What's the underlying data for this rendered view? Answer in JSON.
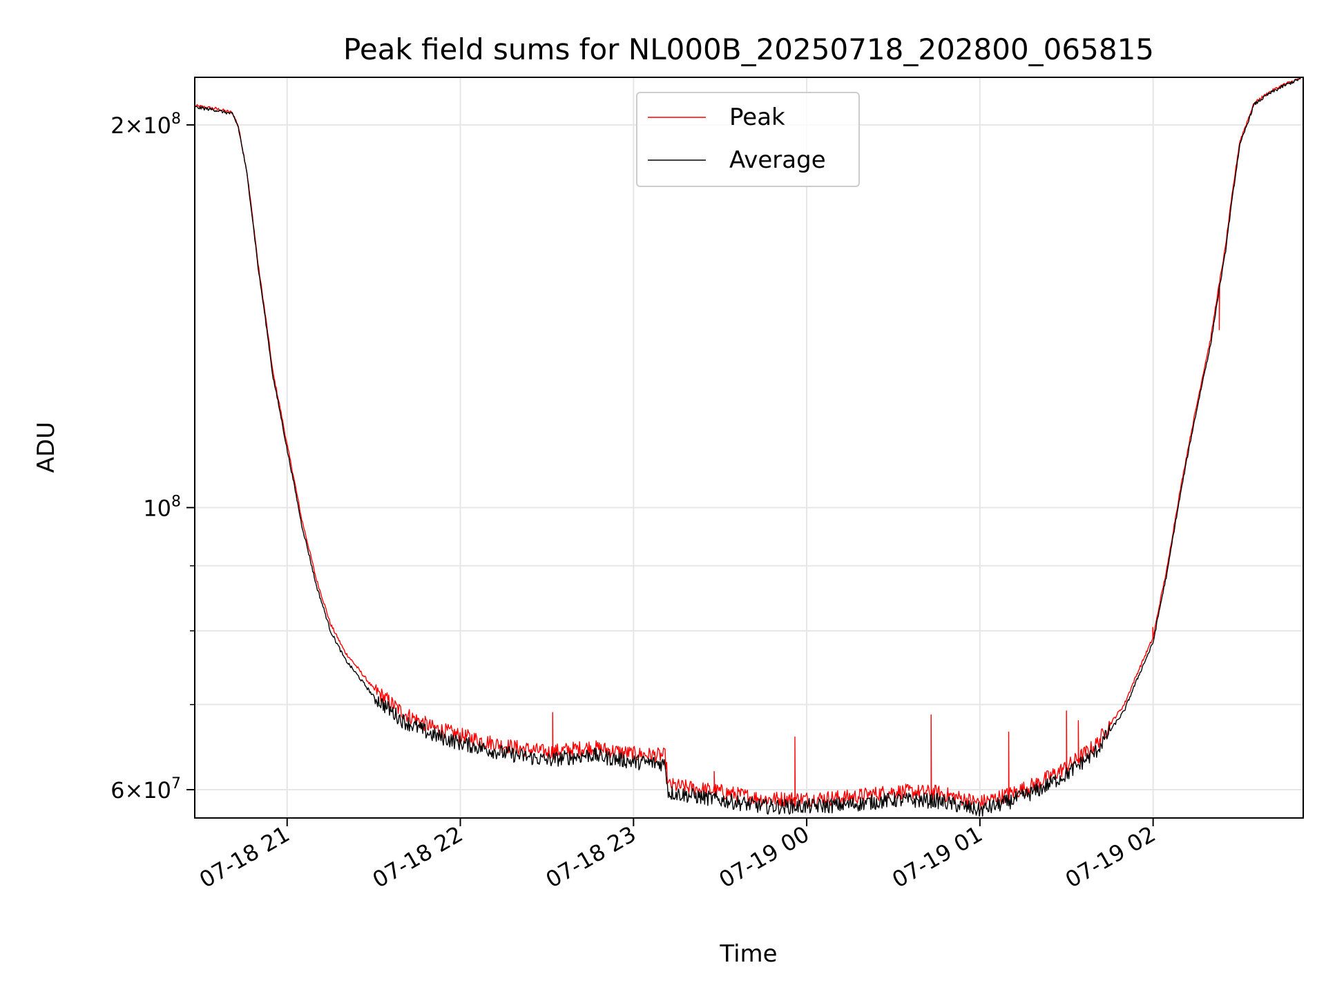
{
  "chart_data": {
    "type": "line",
    "title": "Peak field sums for NL000B_20250718_202800_065815",
    "xlabel": "Time",
    "ylabel": "ADU",
    "yscale": "log",
    "xlim": [
      "2025-07-18 20:28",
      "2025-07-19 02:52"
    ],
    "ylim": [
      57000000,
      218000000
    ],
    "grid": true,
    "legend_position": "top-center",
    "x_ticks": [
      {
        "time": "2025-07-18 21:00",
        "label": "07-18 21"
      },
      {
        "time": "2025-07-18 22:00",
        "label": "07-18 22"
      },
      {
        "time": "2025-07-18 23:00",
        "label": "07-18 23"
      },
      {
        "time": "2025-07-19 00:00",
        "label": "07-19 00"
      },
      {
        "time": "2025-07-19 01:00",
        "label": "07-19 01"
      },
      {
        "time": "2025-07-19 02:00",
        "label": "07-19 02"
      }
    ],
    "y_ticks_major": [
      {
        "value": 60000000,
        "mant": "6",
        "exp": "7"
      },
      {
        "value": 100000000,
        "mant": "",
        "exp": "8"
      },
      {
        "value": 200000000,
        "mant": "2",
        "exp": "8"
      }
    ],
    "y_ticks_minor": [
      70000000,
      80000000,
      90000000
    ],
    "series": [
      {
        "name": "Peak",
        "color": "#ff0000",
        "points": [
          [
            "2025-07-18 20:28",
            207000000
          ],
          [
            "2025-07-18 20:35",
            206000000
          ],
          [
            "2025-07-18 20:41",
            204500000
          ],
          [
            "2025-07-18 20:43",
            200000000
          ],
          [
            "2025-07-18 20:46",
            184000000
          ],
          [
            "2025-07-18 20:50",
            155000000
          ],
          [
            "2025-07-18 20:55",
            128000000
          ],
          [
            "2025-07-18 21:00",
            112000000
          ],
          [
            "2025-07-18 21:05",
            98000000
          ],
          [
            "2025-07-18 21:10",
            88000000
          ],
          [
            "2025-07-18 21:15",
            81000000
          ],
          [
            "2025-07-18 21:20",
            77000000
          ],
          [
            "2025-07-18 21:30",
            72000000
          ],
          [
            "2025-07-18 21:40",
            69000000
          ],
          [
            "2025-07-18 21:50",
            67200000
          ],
          [
            "2025-07-18 22:00",
            66200000
          ],
          [
            "2025-07-18 22:15",
            65000000
          ],
          [
            "2025-07-18 22:30",
            64200000
          ],
          [
            "2025-07-18 22:45",
            64800000
          ],
          [
            "2025-07-18 23:00",
            64000000
          ],
          [
            "2025-07-18 23:11",
            63800000
          ],
          [
            "2025-07-18 23:12",
            60500000
          ],
          [
            "2025-07-18 23:30",
            59800000
          ],
          [
            "2025-07-18 23:45",
            59000000
          ],
          [
            "2025-07-19 00:00",
            59000000
          ],
          [
            "2025-07-19 00:15",
            59200000
          ],
          [
            "2025-07-19 00:30",
            59800000
          ],
          [
            "2025-07-19 00:45",
            59700000
          ],
          [
            "2025-07-19 01:00",
            58600000
          ],
          [
            "2025-07-19 01:10",
            59500000
          ],
          [
            "2025-07-19 01:20",
            60700000
          ],
          [
            "2025-07-19 01:30",
            62500000
          ],
          [
            "2025-07-19 01:40",
            65000000
          ],
          [
            "2025-07-19 01:50",
            70000000
          ],
          [
            "2025-07-19 02:00",
            79000000
          ],
          [
            "2025-07-19 02:05",
            90000000
          ],
          [
            "2025-07-19 02:10",
            105000000
          ],
          [
            "2025-07-19 02:15",
            120000000
          ],
          [
            "2025-07-19 02:20",
            136000000
          ],
          [
            "2025-07-19 02:25",
            160000000
          ],
          [
            "2025-07-19 02:30",
            194000000
          ],
          [
            "2025-07-19 02:35",
            208000000
          ],
          [
            "2025-07-19 02:40",
            212000000
          ],
          [
            "2025-07-19 02:45",
            215000000
          ],
          [
            "2025-07-19 02:52",
            218000000
          ]
        ],
        "spikes": [
          [
            "2025-07-18 22:32",
            69000000
          ],
          [
            "2025-07-18 23:28",
            62000000
          ],
          [
            "2025-07-18 23:56",
            66000000
          ],
          [
            "2025-07-19 00:43",
            68700000
          ],
          [
            "2025-07-19 01:10",
            66600000
          ],
          [
            "2025-07-19 01:30",
            69200000
          ],
          [
            "2025-07-19 01:34",
            68000000
          ],
          [
            "2025-07-19 02:00",
            80500000
          ],
          [
            "2025-07-19 02:23",
            138000000
          ]
        ]
      },
      {
        "name": "Average",
        "color": "#000000",
        "points": [
          [
            "2025-07-18 20:28",
            206500000
          ],
          [
            "2025-07-18 20:35",
            205500000
          ],
          [
            "2025-07-18 20:41",
            204000000
          ],
          [
            "2025-07-18 20:43",
            199500000
          ],
          [
            "2025-07-18 20:46",
            183500000
          ],
          [
            "2025-07-18 20:50",
            154000000
          ],
          [
            "2025-07-18 20:55",
            127000000
          ],
          [
            "2025-07-18 21:00",
            111000000
          ],
          [
            "2025-07-18 21:05",
            97000000
          ],
          [
            "2025-07-18 21:10",
            87000000
          ],
          [
            "2025-07-18 21:15",
            80000000
          ],
          [
            "2025-07-18 21:20",
            76000000
          ],
          [
            "2025-07-18 21:30",
            71000000
          ],
          [
            "2025-07-18 21:40",
            68000000
          ],
          [
            "2025-07-18 21:50",
            66300000
          ],
          [
            "2025-07-18 22:00",
            65300000
          ],
          [
            "2025-07-18 22:15",
            64100000
          ],
          [
            "2025-07-18 22:30",
            63300000
          ],
          [
            "2025-07-18 22:45",
            63900000
          ],
          [
            "2025-07-18 23:00",
            63100000
          ],
          [
            "2025-07-18 23:11",
            62900000
          ],
          [
            "2025-07-18 23:12",
            59700000
          ],
          [
            "2025-07-18 23:30",
            58900000
          ],
          [
            "2025-07-18 23:45",
            58200000
          ],
          [
            "2025-07-19 00:00",
            58200000
          ],
          [
            "2025-07-19 00:15",
            58400000
          ],
          [
            "2025-07-19 00:30",
            58900000
          ],
          [
            "2025-07-19 00:45",
            58800000
          ],
          [
            "2025-07-19 01:00",
            57800000
          ],
          [
            "2025-07-19 01:10",
            58700000
          ],
          [
            "2025-07-19 01:20",
            59900000
          ],
          [
            "2025-07-19 01:30",
            61700000
          ],
          [
            "2025-07-19 01:40",
            64200000
          ],
          [
            "2025-07-19 01:50",
            69200000
          ],
          [
            "2025-07-19 02:00",
            78300000
          ],
          [
            "2025-07-19 02:05",
            89200000
          ],
          [
            "2025-07-19 02:10",
            104000000
          ],
          [
            "2025-07-19 02:15",
            119000000
          ],
          [
            "2025-07-19 02:20",
            134500000
          ],
          [
            "2025-07-19 02:25",
            158500000
          ],
          [
            "2025-07-19 02:30",
            192500000
          ],
          [
            "2025-07-19 02:35",
            207500000
          ],
          [
            "2025-07-19 02:40",
            211500000
          ],
          [
            "2025-07-19 02:45",
            214500000
          ],
          [
            "2025-07-19 02:52",
            218000000
          ]
        ],
        "spikes": []
      }
    ]
  }
}
